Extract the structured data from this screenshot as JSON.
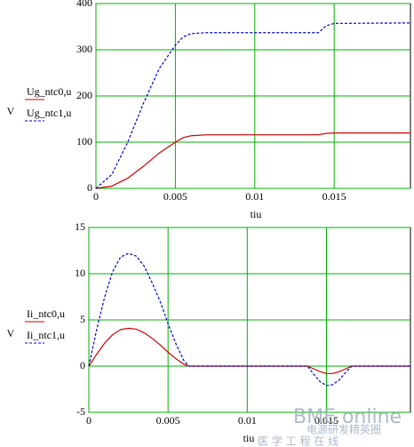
{
  "chart_data": [
    {
      "type": "line",
      "y_label": "V",
      "x_label": "tiu",
      "x": [
        0,
        0.001,
        0.002,
        0.003,
        0.004,
        0.005,
        0.0055,
        0.006,
        0.007,
        0.014,
        0.0145,
        0.015,
        0.0198
      ],
      "series": [
        {
          "name": "Ug_ntc0,u",
          "color": "#cc0000",
          "dashed": false,
          "values": [
            0,
            5,
            22,
            48,
            77,
            100,
            110,
            114,
            116,
            116,
            119,
            120,
            120
          ]
        },
        {
          "name": "Ug_ntc1,u",
          "color": "#0000cc",
          "dashed": true,
          "values": [
            0,
            30,
            100,
            185,
            260,
            310,
            328,
            335,
            337,
            337,
            352,
            357,
            358
          ]
        }
      ],
      "xlim": [
        0,
        0.0198
      ],
      "ylim": [
        0,
        400
      ],
      "xticks": [
        0,
        0.005,
        0.01,
        0.015
      ],
      "yticks": [
        0,
        100,
        200,
        300,
        400
      ],
      "grid": true,
      "grid_color": "#00b000"
    },
    {
      "type": "line",
      "y_label": "V",
      "x_label": "tiu",
      "x": [
        0,
        0.0005,
        0.001,
        0.0015,
        0.002,
        0.0025,
        0.003,
        0.0035,
        0.004,
        0.0045,
        0.005,
        0.0055,
        0.006,
        0.0063,
        0.0138,
        0.0142,
        0.0146,
        0.015,
        0.0154,
        0.0158,
        0.0162,
        0.0166,
        0.0203
      ],
      "series": [
        {
          "name": "Ii_ntc0,u",
          "color": "#cc0000",
          "dashed": false,
          "values": [
            0,
            1.3,
            2.5,
            3.4,
            3.95,
            4.1,
            4.0,
            3.6,
            3.0,
            2.3,
            1.5,
            0.8,
            0.2,
            0,
            0,
            -0.3,
            -0.6,
            -0.8,
            -0.8,
            -0.6,
            -0.3,
            0,
            0
          ]
        },
        {
          "name": "Ii_ntc1,u",
          "color": "#0000cc",
          "dashed": true,
          "values": [
            0,
            4.0,
            7.5,
            10.2,
            11.8,
            12.2,
            11.9,
            10.8,
            9.0,
            7.0,
            4.6,
            2.4,
            0.6,
            0,
            0,
            -0.9,
            -1.7,
            -2.1,
            -2.0,
            -1.5,
            -0.7,
            0,
            0
          ]
        }
      ],
      "xlim": [
        0,
        0.0203
      ],
      "ylim": [
        -5,
        15
      ],
      "xticks": [
        0,
        0.005,
        0.01,
        0.015
      ],
      "yticks": [
        -5,
        0,
        5,
        10,
        15
      ],
      "grid": true,
      "grid_color": "#00b000",
      "annotations": [
        "BME online",
        "电源研发精英圈",
        "医 学 工 程 在 线"
      ]
    }
  ]
}
